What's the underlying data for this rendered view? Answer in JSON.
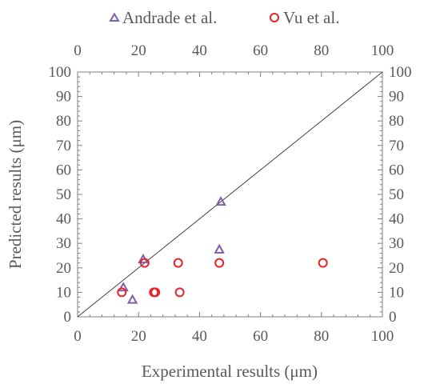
{
  "chart_data": {
    "type": "scatter",
    "title": "",
    "xlabel": "Experimental results (μm)",
    "ylabel": "Predicted results (μm)",
    "xlim": [
      0,
      100
    ],
    "ylim": [
      0,
      100
    ],
    "x_ticks": [
      "0",
      "20",
      "40",
      "60",
      "80",
      "100"
    ],
    "y_ticks": [
      "0",
      "10",
      "20",
      "30",
      "40",
      "50",
      "60",
      "70",
      "80",
      "90",
      "100"
    ],
    "secondary_axes": true,
    "grid": false,
    "legend_position": "top",
    "reference_line": {
      "x": [
        0,
        100
      ],
      "y": [
        0,
        100
      ]
    },
    "series": [
      {
        "name": "Andrade et al.",
        "marker": "triangle",
        "color": "#7F5FA7",
        "points": [
          {
            "x": 15,
            "y": 12
          },
          {
            "x": 18,
            "y": 7
          },
          {
            "x": 21.5,
            "y": 23.5
          },
          {
            "x": 47,
            "y": 47
          },
          {
            "x": 46.5,
            "y": 27.5
          }
        ]
      },
      {
        "name": "Vu et al.",
        "marker": "circle",
        "color": "#E8242B",
        "points": [
          {
            "x": 14.5,
            "y": 10
          },
          {
            "x": 22,
            "y": 22
          },
          {
            "x": 25,
            "y": 10
          },
          {
            "x": 25.5,
            "y": 10
          },
          {
            "x": 33,
            "y": 22
          },
          {
            "x": 33.5,
            "y": 10
          },
          {
            "x": 46.5,
            "y": 22
          },
          {
            "x": 80.5,
            "y": 22
          }
        ]
      }
    ]
  }
}
